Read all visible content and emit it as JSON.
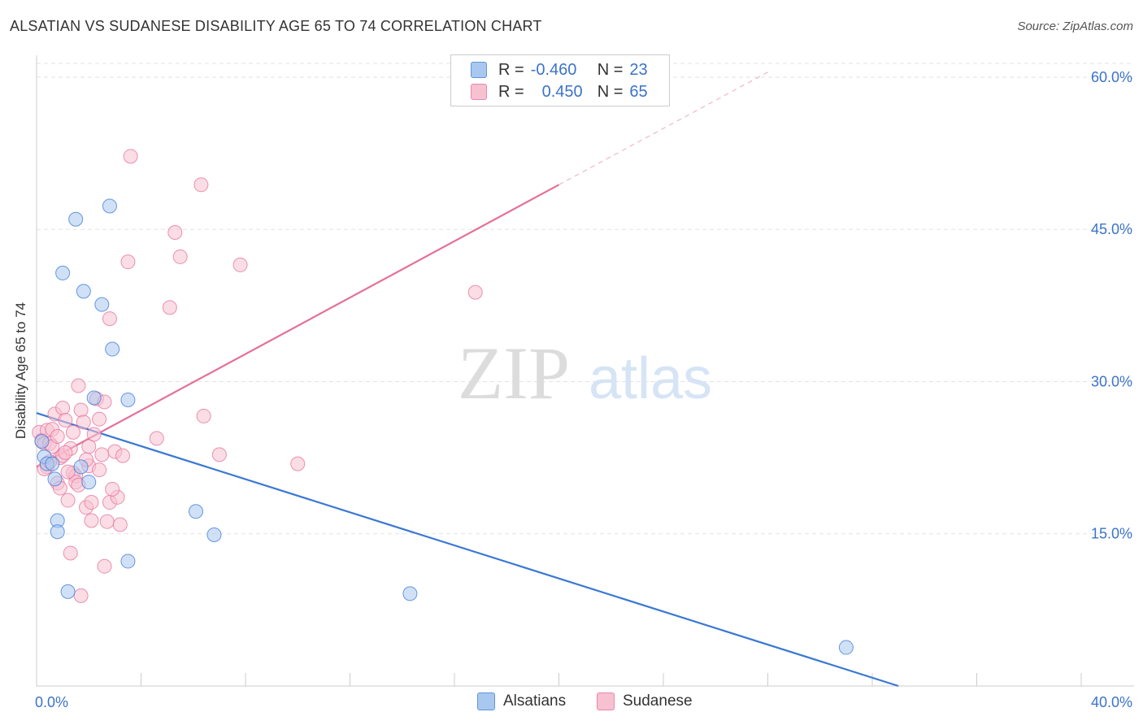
{
  "title": "ALSATIAN VS SUDANESE DISABILITY AGE 65 TO 74 CORRELATION CHART",
  "source": "Source: ZipAtlas.com",
  "watermark": {
    "zip": "ZIP",
    "atlas": "atlas"
  },
  "legend": {
    "rows": [
      {
        "r_label": "R =",
        "r_value": "-0.460",
        "n_label": "N =",
        "n_value": "23",
        "color": "#a9c8f0",
        "border": "#5f95d8"
      },
      {
        "r_label": "R =",
        "r_value": "0.450",
        "n_label": "N =",
        "n_value": "65",
        "color": "#f7c1d2",
        "border": "#e68aa8"
      }
    ]
  },
  "bottom_legend": [
    "Alsatians",
    "Sudanese"
  ],
  "chart_data": {
    "type": "scatter",
    "title": "ALSATIAN VS SUDANESE DISABILITY AGE 65 TO 74 CORRELATION CHART",
    "xlabel": "",
    "ylabel": "Disability Age 65 to 74",
    "xlim": [
      0,
      40
    ],
    "ylim": [
      0,
      62
    ],
    "x_tick_labels": [
      "0.0%",
      "40.0%"
    ],
    "y_ticks": [
      15,
      30,
      45,
      60
    ],
    "y_tick_labels": [
      "15.0%",
      "30.0%",
      "45.0%",
      "60.0%"
    ],
    "colors": {
      "alsatians": "#3a78d4",
      "sudanese": "#e4709a",
      "alsatians_fill": "#a9c8f0",
      "sudanese_fill": "#f7c1d2",
      "tick_text": "#3b73c9"
    },
    "series": [
      {
        "name": "Alsatians",
        "points": [
          [
            0.3,
            22.6
          ],
          [
            0.4,
            21.9
          ],
          [
            0.6,
            21.9
          ],
          [
            0.7,
            20.4
          ],
          [
            0.8,
            16.3
          ],
          [
            0.8,
            15.2
          ],
          [
            1.0,
            40.7
          ],
          [
            1.2,
            9.3
          ],
          [
            1.5,
            46.0
          ],
          [
            1.7,
            21.6
          ],
          [
            1.8,
            38.9
          ],
          [
            2.0,
            20.1
          ],
          [
            2.2,
            28.4
          ],
          [
            2.5,
            37.6
          ],
          [
            2.8,
            47.3
          ],
          [
            2.9,
            33.2
          ],
          [
            3.5,
            28.2
          ],
          [
            3.5,
            12.3
          ],
          [
            0.2,
            24.1
          ],
          [
            6.1,
            17.2
          ],
          [
            6.8,
            14.9
          ],
          [
            14.3,
            9.1
          ],
          [
            31.0,
            3.8
          ]
        ],
        "trend": {
          "x": [
            0,
            33
          ],
          "y": [
            26.9,
            0
          ]
        }
      },
      {
        "name": "Sudanese",
        "points": [
          [
            0.1,
            25.0
          ],
          [
            0.2,
            24.2
          ],
          [
            0.3,
            23.9
          ],
          [
            0.4,
            25.2
          ],
          [
            0.4,
            21.6
          ],
          [
            0.5,
            23.9
          ],
          [
            0.6,
            25.3
          ],
          [
            0.7,
            26.8
          ],
          [
            0.8,
            20.0
          ],
          [
            0.9,
            19.5
          ],
          [
            0.9,
            22.5
          ],
          [
            1.0,
            22.7
          ],
          [
            1.0,
            27.4
          ],
          [
            1.1,
            26.2
          ],
          [
            1.2,
            18.3
          ],
          [
            1.3,
            23.4
          ],
          [
            1.3,
            13.1
          ],
          [
            1.4,
            25.0
          ],
          [
            1.4,
            21.0
          ],
          [
            1.5,
            20.7
          ],
          [
            1.5,
            20.1
          ],
          [
            1.6,
            29.6
          ],
          [
            1.7,
            8.9
          ],
          [
            1.7,
            27.2
          ],
          [
            1.8,
            26.0
          ],
          [
            1.9,
            17.6
          ],
          [
            2.0,
            21.7
          ],
          [
            2.0,
            23.6
          ],
          [
            2.1,
            18.1
          ],
          [
            2.1,
            16.3
          ],
          [
            2.2,
            24.8
          ],
          [
            2.3,
            28.3
          ],
          [
            2.4,
            21.3
          ],
          [
            2.4,
            26.3
          ],
          [
            2.6,
            28.0
          ],
          [
            2.6,
            11.8
          ],
          [
            2.7,
            16.2
          ],
          [
            2.8,
            36.2
          ],
          [
            2.8,
            18.1
          ],
          [
            3.0,
            23.1
          ],
          [
            3.1,
            18.6
          ],
          [
            3.2,
            15.9
          ],
          [
            3.3,
            22.7
          ],
          [
            3.5,
            41.8
          ],
          [
            3.6,
            52.2
          ],
          [
            4.6,
            24.4
          ],
          [
            5.1,
            37.3
          ],
          [
            5.3,
            44.7
          ],
          [
            5.5,
            42.3
          ],
          [
            6.3,
            49.4
          ],
          [
            6.4,
            26.6
          ],
          [
            7.0,
            22.8
          ],
          [
            7.8,
            41.5
          ],
          [
            10.0,
            21.9
          ],
          [
            16.8,
            38.8
          ],
          [
            0.3,
            21.4
          ],
          [
            0.5,
            22.1
          ],
          [
            1.1,
            23.0
          ],
          [
            1.9,
            22.3
          ],
          [
            1.2,
            21.1
          ],
          [
            0.6,
            23.6
          ],
          [
            2.5,
            22.8
          ],
          [
            0.8,
            24.6
          ],
          [
            1.6,
            19.8
          ],
          [
            2.9,
            19.4
          ]
        ],
        "trend": {
          "x": [
            0,
            20
          ],
          "y": [
            21.6,
            49.4
          ]
        },
        "trend_extension": {
          "x": [
            20,
            28
          ],
          "y": [
            49.4,
            60.5
          ]
        }
      }
    ]
  }
}
